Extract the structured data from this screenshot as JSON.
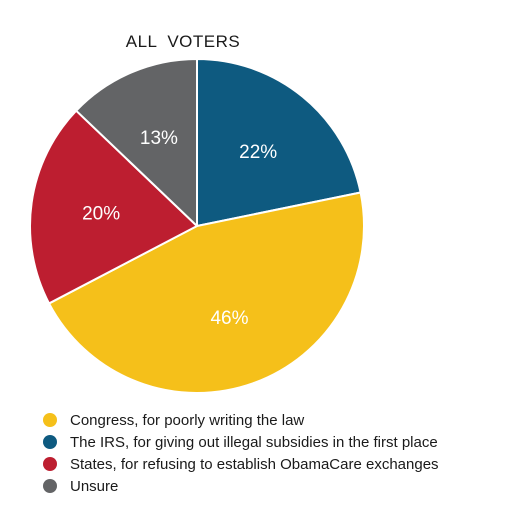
{
  "chart_data": {
    "type": "pie",
    "title": "ALL  VOTERS",
    "categories": [
      "The IRS, for giving out illegal subsidies in the first place",
      "Congress, for poorly writing the law",
      "States, for refusing to establish ObamaCare exchanges",
      "Unsure"
    ],
    "values": [
      22,
      46,
      20,
      13
    ],
    "value_labels": [
      "22%",
      "46%",
      "20%",
      "13%"
    ],
    "colors": [
      "#0e5a80",
      "#f5c01a",
      "#bd1e30",
      "#636466"
    ],
    "legend_position": "bottom-left",
    "legend": [
      {
        "label": "Congress, for poorly writing the law",
        "color": "#f5c01a"
      },
      {
        "label": "The IRS, for giving out illegal subsidies in the first place",
        "color": "#0e5a80"
      },
      {
        "label": "States, for refusing to establish ObamaCare exchanges",
        "color": "#bd1e30"
      },
      {
        "label": "Unsure",
        "color": "#636466"
      }
    ]
  }
}
